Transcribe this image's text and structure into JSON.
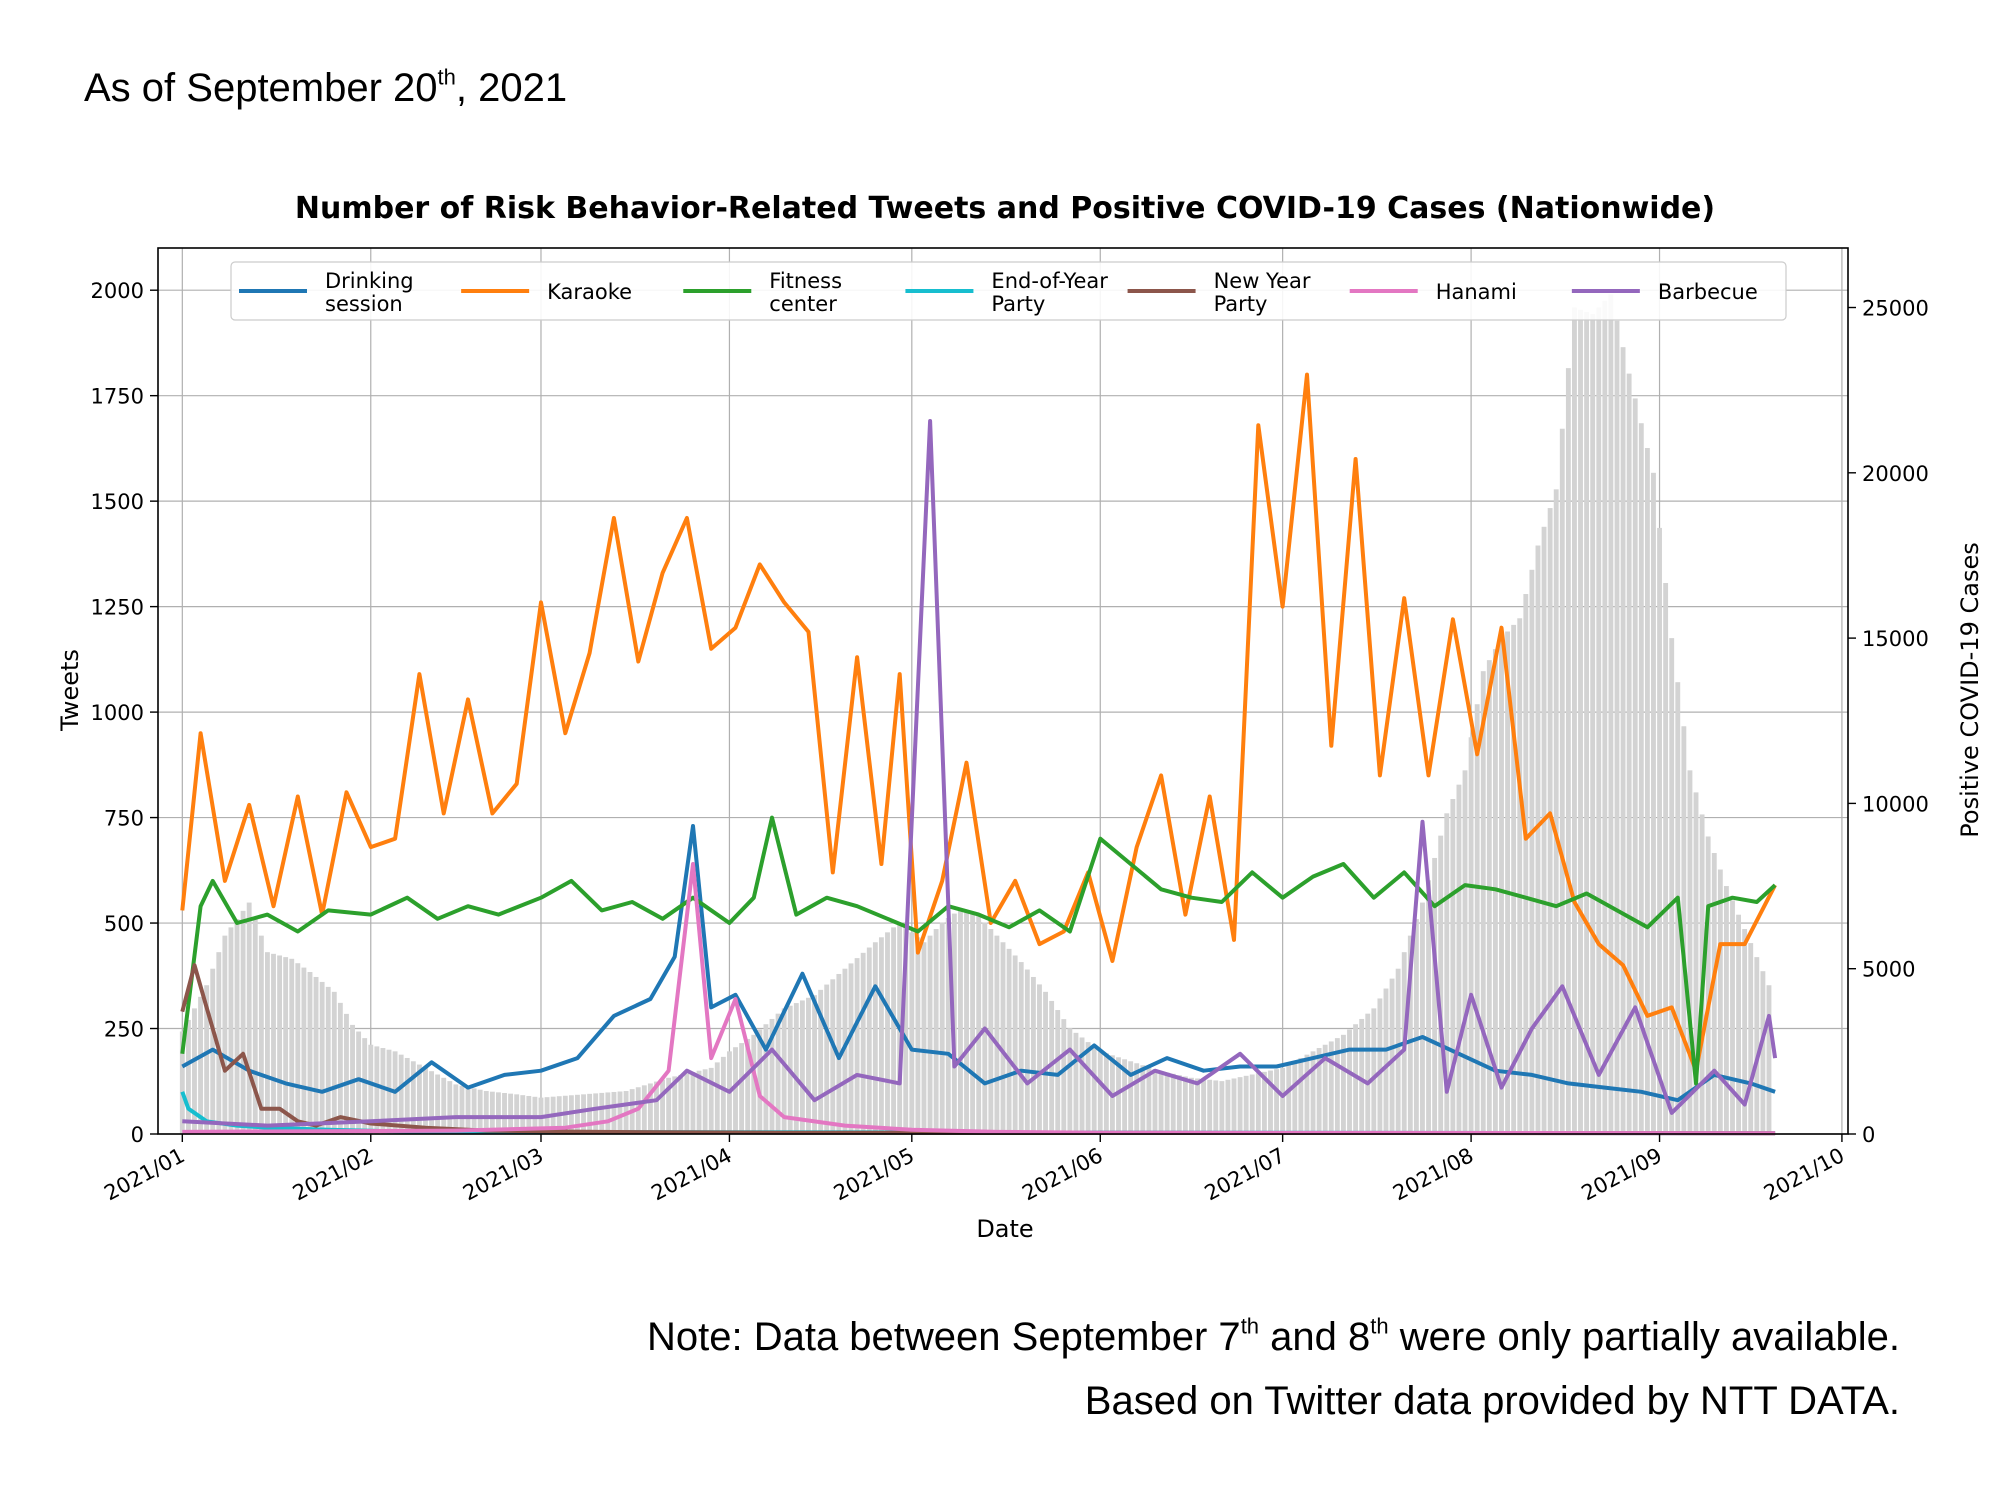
{
  "header": {
    "as_of_pre": "As of September 20",
    "as_of_sup": "th",
    "as_of_post": ", 2021"
  },
  "notes": {
    "line1_a": "Note: Data between September 7",
    "line1_sup1": "th",
    "line1_b": " and 8",
    "line1_sup2": "th",
    "line1_c": " were only partially available.",
    "line2": "Based on Twitter data provided by NTT DATA."
  },
  "chart_data": {
    "type": "line",
    "title": "Number of Risk Behavior-Related Tweets and Positive COVID-19 Cases (Nationwide)",
    "xlabel": "Date",
    "ylabel": "Tweets",
    "y2label": "Positive COVID-19 Cases",
    "grid": true,
    "legend_position": "top",
    "xlim": [
      "2020-12-28",
      "2021-10-02"
    ],
    "ylim": [
      0,
      2100
    ],
    "y2lim": [
      0,
      26800
    ],
    "x_ticks": [
      "2021-01-01",
      "2021-02-01",
      "2021-03-01",
      "2021-04-01",
      "2021-05-01",
      "2021-06-01",
      "2021-07-01",
      "2021-08-01",
      "2021-09-01",
      "2021-10-01"
    ],
    "x_tick_labels": [
      "2021/01",
      "2021/02",
      "2021/03",
      "2021/04",
      "2021/05",
      "2021/06",
      "2021/07",
      "2021/08",
      "2021/09",
      "2021/10"
    ],
    "y_ticks": [
      0,
      250,
      500,
      750,
      1000,
      1250,
      1500,
      1750,
      2000
    ],
    "y2_ticks": [
      0,
      5000,
      10000,
      15000,
      20000,
      25000
    ],
    "background_series": {
      "name": "Positive COVID-19 Cases",
      "type": "bar",
      "axis": "right",
      "color": "#d3d3d3",
      "x": [
        "2021-01-01",
        "2021-01-05",
        "2021-01-08",
        "2021-01-12",
        "2021-01-15",
        "2021-01-19",
        "2021-01-22",
        "2021-01-26",
        "2021-01-29",
        "2021-02-01",
        "2021-02-05",
        "2021-02-10",
        "2021-02-15",
        "2021-02-20",
        "2021-02-25",
        "2021-03-01",
        "2021-03-08",
        "2021-03-15",
        "2021-03-22",
        "2021-03-29",
        "2021-04-01",
        "2021-04-05",
        "2021-04-10",
        "2021-04-15",
        "2021-04-20",
        "2021-04-25",
        "2021-04-29",
        "2021-05-03",
        "2021-05-06",
        "2021-05-09",
        "2021-05-12",
        "2021-05-15",
        "2021-05-19",
        "2021-05-23",
        "2021-05-27",
        "2021-06-01",
        "2021-06-06",
        "2021-06-11",
        "2021-06-16",
        "2021-06-21",
        "2021-06-26",
        "2021-07-01",
        "2021-07-06",
        "2021-07-11",
        "2021-07-16",
        "2021-07-20",
        "2021-07-24",
        "2021-07-28",
        "2021-07-31",
        "2021-08-03",
        "2021-08-06",
        "2021-08-09",
        "2021-08-12",
        "2021-08-15",
        "2021-08-18",
        "2021-08-21",
        "2021-08-24",
        "2021-08-27",
        "2021-08-31",
        "2021-09-03",
        "2021-09-06",
        "2021-09-09",
        "2021-09-12",
        "2021-09-15",
        "2021-09-19"
      ],
      "values": [
        3100,
        4500,
        6000,
        7000,
        5500,
        5300,
        4900,
        4300,
        3300,
        2700,
        2500,
        2000,
        1500,
        1300,
        1200,
        1100,
        1200,
        1300,
        1700,
        2000,
        2500,
        3000,
        3800,
        4200,
        5000,
        5800,
        6400,
        5800,
        6400,
        6800,
        6600,
        6000,
        5200,
        4300,
        3200,
        2500,
        2200,
        1900,
        1700,
        1600,
        1800,
        2000,
        2500,
        3000,
        3800,
        5000,
        7000,
        9700,
        11000,
        14000,
        15000,
        15600,
        17800,
        19500,
        25000,
        24800,
        25400,
        23000,
        20000,
        15000,
        11000,
        9000,
        7500,
        6200,
        4500
      ]
    },
    "series": [
      {
        "name": "Drinking session",
        "color": "#1f77b4",
        "x": [
          "2021-01-01",
          "2021-01-06",
          "2021-01-12",
          "2021-01-18",
          "2021-01-24",
          "2021-01-30",
          "2021-02-05",
          "2021-02-11",
          "2021-02-17",
          "2021-02-23",
          "2021-03-01",
          "2021-03-07",
          "2021-03-13",
          "2021-03-19",
          "2021-03-23",
          "2021-03-26",
          "2021-03-29",
          "2021-04-02",
          "2021-04-07",
          "2021-04-13",
          "2021-04-19",
          "2021-04-25",
          "2021-05-01",
          "2021-05-07",
          "2021-05-13",
          "2021-05-19",
          "2021-05-25",
          "2021-05-31",
          "2021-06-06",
          "2021-06-12",
          "2021-06-18",
          "2021-06-24",
          "2021-06-30",
          "2021-07-06",
          "2021-07-12",
          "2021-07-18",
          "2021-07-24",
          "2021-07-30",
          "2021-08-05",
          "2021-08-11",
          "2021-08-17",
          "2021-08-23",
          "2021-08-29",
          "2021-09-04",
          "2021-09-10",
          "2021-09-16",
          "2021-09-20"
        ],
        "values": [
          160,
          200,
          150,
          120,
          100,
          130,
          100,
          170,
          110,
          140,
          150,
          180,
          280,
          320,
          420,
          730,
          300,
          330,
          200,
          380,
          180,
          350,
          200,
          190,
          120,
          150,
          140,
          210,
          140,
          180,
          150,
          160,
          160,
          180,
          200,
          200,
          230,
          190,
          150,
          140,
          120,
          110,
          100,
          80,
          140,
          120,
          100
        ]
      },
      {
        "name": "Karaoke",
        "color": "#ff7f0e",
        "x": [
          "2021-01-01",
          "2021-01-04",
          "2021-01-08",
          "2021-01-12",
          "2021-01-16",
          "2021-01-20",
          "2021-01-24",
          "2021-01-28",
          "2021-02-01",
          "2021-02-05",
          "2021-02-09",
          "2021-02-13",
          "2021-02-17",
          "2021-02-21",
          "2021-02-25",
          "2021-03-01",
          "2021-03-05",
          "2021-03-09",
          "2021-03-13",
          "2021-03-17",
          "2021-03-21",
          "2021-03-25",
          "2021-03-29",
          "2021-04-02",
          "2021-04-06",
          "2021-04-10",
          "2021-04-14",
          "2021-04-18",
          "2021-04-22",
          "2021-04-26",
          "2021-04-29",
          "2021-05-02",
          "2021-05-06",
          "2021-05-10",
          "2021-05-14",
          "2021-05-18",
          "2021-05-22",
          "2021-05-26",
          "2021-05-30",
          "2021-06-03",
          "2021-06-07",
          "2021-06-11",
          "2021-06-15",
          "2021-06-19",
          "2021-06-23",
          "2021-06-27",
          "2021-07-01",
          "2021-07-05",
          "2021-07-09",
          "2021-07-13",
          "2021-07-17",
          "2021-07-21",
          "2021-07-25",
          "2021-07-29",
          "2021-08-02",
          "2021-08-06",
          "2021-08-10",
          "2021-08-14",
          "2021-08-18",
          "2021-08-22",
          "2021-08-26",
          "2021-08-30",
          "2021-09-03",
          "2021-09-07",
          "2021-09-11",
          "2021-09-15",
          "2021-09-20"
        ],
        "values": [
          530,
          950,
          600,
          780,
          540,
          800,
          520,
          810,
          680,
          700,
          1090,
          760,
          1030,
          760,
          830,
          1260,
          950,
          1140,
          1460,
          1120,
          1330,
          1460,
          1150,
          1200,
          1350,
          1260,
          1190,
          620,
          1130,
          640,
          1090,
          430,
          600,
          880,
          500,
          600,
          450,
          480,
          620,
          410,
          680,
          850,
          520,
          800,
          460,
          1680,
          1250,
          1800,
          920,
          1600,
          850,
          1270,
          850,
          1220,
          900,
          1200,
          700,
          760,
          550,
          450,
          400,
          280,
          300,
          150,
          450,
          450,
          590
        ]
      },
      {
        "name": "Fitness center",
        "color": "#2ca02c",
        "x": [
          "2021-01-01",
          "2021-01-04",
          "2021-01-06",
          "2021-01-10",
          "2021-01-15",
          "2021-01-20",
          "2021-01-25",
          "2021-02-01",
          "2021-02-07",
          "2021-02-12",
          "2021-02-17",
          "2021-02-22",
          "2021-03-01",
          "2021-03-06",
          "2021-03-11",
          "2021-03-16",
          "2021-03-21",
          "2021-03-26",
          "2021-04-01",
          "2021-04-05",
          "2021-04-08",
          "2021-04-12",
          "2021-04-17",
          "2021-04-22",
          "2021-04-27",
          "2021-05-02",
          "2021-05-07",
          "2021-05-12",
          "2021-05-17",
          "2021-05-22",
          "2021-05-27",
          "2021-06-01",
          "2021-06-06",
          "2021-06-11",
          "2021-06-16",
          "2021-06-21",
          "2021-06-26",
          "2021-07-01",
          "2021-07-06",
          "2021-07-11",
          "2021-07-16",
          "2021-07-21",
          "2021-07-26",
          "2021-07-31",
          "2021-08-05",
          "2021-08-10",
          "2021-08-15",
          "2021-08-20",
          "2021-08-25",
          "2021-08-30",
          "2021-09-04",
          "2021-09-07",
          "2021-09-09",
          "2021-09-13",
          "2021-09-17",
          "2021-09-20"
        ],
        "values": [
          190,
          540,
          600,
          500,
          520,
          480,
          530,
          520,
          560,
          510,
          540,
          520,
          560,
          600,
          530,
          550,
          510,
          560,
          500,
          560,
          750,
          520,
          560,
          540,
          510,
          480,
          540,
          520,
          490,
          530,
          480,
          700,
          640,
          580,
          560,
          550,
          620,
          560,
          610,
          640,
          560,
          620,
          540,
          590,
          580,
          560,
          540,
          570,
          530,
          490,
          560,
          120,
          540,
          560,
          550,
          590
        ]
      },
      {
        "name": "End-of-Year Party",
        "color": "#17becf",
        "x": [
          "2021-01-01",
          "2021-01-02",
          "2021-01-05",
          "2021-01-10",
          "2021-01-15",
          "2021-01-25",
          "2021-02-10",
          "2021-09-20"
        ],
        "values": [
          100,
          60,
          30,
          20,
          15,
          10,
          5,
          2
        ]
      },
      {
        "name": "New Year Party",
        "color": "#8c564b",
        "x": [
          "2021-01-01",
          "2021-01-03",
          "2021-01-05",
          "2021-01-08",
          "2021-01-11",
          "2021-01-14",
          "2021-01-17",
          "2021-01-20",
          "2021-01-23",
          "2021-01-27",
          "2021-02-01",
          "2021-02-10",
          "2021-02-20",
          "2021-03-10",
          "2021-04-10",
          "2021-09-20"
        ],
        "values": [
          290,
          400,
          300,
          150,
          190,
          60,
          60,
          30,
          20,
          40,
          25,
          15,
          8,
          5,
          3,
          2
        ]
      },
      {
        "name": "Hanami",
        "color": "#e377c2",
        "x": [
          "2021-01-01",
          "2021-02-15",
          "2021-03-05",
          "2021-03-12",
          "2021-03-17",
          "2021-03-22",
          "2021-03-26",
          "2021-03-29",
          "2021-04-02",
          "2021-04-06",
          "2021-04-10",
          "2021-04-20",
          "2021-05-01",
          "2021-05-15",
          "2021-06-01",
          "2021-09-20"
        ],
        "values": [
          5,
          8,
          15,
          30,
          60,
          150,
          640,
          180,
          320,
          90,
          40,
          20,
          10,
          5,
          3,
          2
        ]
      },
      {
        "name": "Barbecue",
        "color": "#9467bd",
        "x": [
          "2021-01-01",
          "2021-01-15",
          "2021-02-01",
          "2021-02-15",
          "2021-03-01",
          "2021-03-10",
          "2021-03-20",
          "2021-03-25",
          "2021-04-01",
          "2021-04-08",
          "2021-04-15",
          "2021-04-22",
          "2021-04-29",
          "2021-05-04",
          "2021-05-08",
          "2021-05-13",
          "2021-05-20",
          "2021-05-27",
          "2021-06-03",
          "2021-06-10",
          "2021-06-17",
          "2021-06-24",
          "2021-07-01",
          "2021-07-08",
          "2021-07-15",
          "2021-07-21",
          "2021-07-24",
          "2021-07-28",
          "2021-08-01",
          "2021-08-06",
          "2021-08-11",
          "2021-08-16",
          "2021-08-22",
          "2021-08-28",
          "2021-09-03",
          "2021-09-10",
          "2021-09-15",
          "2021-09-19",
          "2021-09-20"
        ],
        "values": [
          30,
          20,
          30,
          40,
          40,
          60,
          80,
          150,
          100,
          200,
          80,
          140,
          120,
          1690,
          160,
          250,
          120,
          200,
          90,
          150,
          120,
          190,
          90,
          180,
          120,
          200,
          740,
          100,
          330,
          110,
          250,
          350,
          140,
          300,
          50,
          150,
          70,
          280,
          180
        ]
      }
    ]
  }
}
